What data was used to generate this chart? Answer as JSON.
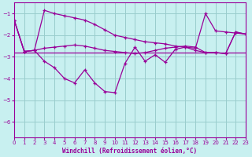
{
  "xlabel": "Windchill (Refroidissement éolien,°C)",
  "bg_color": "#c8f0f0",
  "grid_color": "#99cccc",
  "line_color": "#990099",
  "xlim": [
    0,
    23
  ],
  "ylim": [
    -6.7,
    -0.5
  ],
  "yticks": [
    -6,
    -5,
    -4,
    -3,
    -2,
    -1
  ],
  "xticks": [
    0,
    1,
    2,
    3,
    4,
    5,
    6,
    7,
    8,
    9,
    10,
    11,
    12,
    13,
    14,
    15,
    16,
    17,
    18,
    19,
    20,
    21,
    22,
    23
  ],
  "series1_x": [
    0,
    1,
    2,
    3,
    4,
    5,
    6,
    7,
    8,
    9,
    10,
    11,
    12,
    13,
    14,
    15,
    16,
    17,
    18,
    19,
    20,
    21,
    22,
    23
  ],
  "series1_y": [
    -1.3,
    -2.75,
    -2.7,
    -0.85,
    -1.0,
    -1.1,
    -1.2,
    -1.3,
    -1.5,
    -1.75,
    -2.0,
    -2.1,
    -2.2,
    -2.3,
    -2.35,
    -2.4,
    -2.5,
    -2.55,
    -2.6,
    -1.0,
    -1.8,
    -1.85,
    -1.9,
    -1.95
  ],
  "series2_x": [
    0,
    1,
    2,
    3,
    4,
    5,
    6,
    7,
    8,
    9,
    10,
    11,
    12,
    13,
    14,
    15,
    16,
    17,
    18,
    19,
    20,
    21,
    22,
    23
  ],
  "series2_y": [
    -1.3,
    -2.75,
    -2.7,
    -2.6,
    -2.55,
    -2.5,
    -2.45,
    -2.5,
    -2.6,
    -2.7,
    -2.75,
    -2.8,
    -2.85,
    -2.8,
    -2.7,
    -2.6,
    -2.55,
    -2.5,
    -2.55,
    -2.8,
    -2.8,
    -2.85,
    -1.85,
    -1.95
  ],
  "series3_x": [
    0,
    1,
    2,
    3,
    4,
    5,
    6,
    7,
    8,
    9,
    10,
    11,
    12,
    13,
    14,
    15,
    16,
    17,
    18,
    19,
    20,
    21,
    22,
    23
  ],
  "series3_y": [
    -1.3,
    -2.75,
    -2.7,
    -3.2,
    -3.5,
    -4.0,
    -4.2,
    -3.6,
    -4.2,
    -4.6,
    -4.65,
    -3.3,
    -2.55,
    -3.2,
    -2.9,
    -3.25,
    -2.65,
    -2.55,
    -2.7,
    -2.8,
    -2.8,
    -2.85,
    -1.85,
    -1.95
  ],
  "flat_y": -2.8
}
